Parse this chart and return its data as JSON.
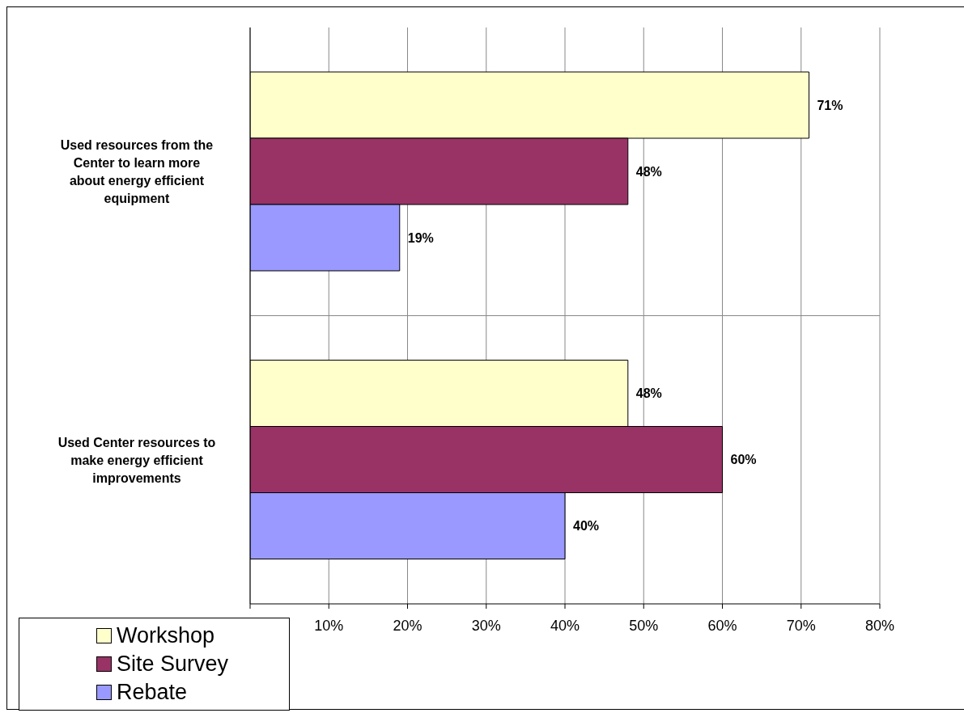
{
  "chart_data": {
    "type": "bar",
    "orientation": "horizontal",
    "categories": [
      "Used resources from the Center to learn more about energy efficient equipment",
      "Used Center resources to make energy efficient improvements"
    ],
    "series": [
      {
        "name": "Workshop",
        "color": "#ffffcc",
        "values": [
          71,
          48
        ],
        "value_labels": [
          "71%",
          "48%"
        ]
      },
      {
        "name": "Site Survey",
        "color": "#993366",
        "values": [
          48,
          60
        ],
        "value_labels": [
          "48%",
          "60%"
        ]
      },
      {
        "name": "Rebate",
        "color": "#9999ff",
        "values": [
          19,
          40
        ],
        "value_labels": [
          "19%",
          "40%"
        ]
      }
    ],
    "xlim": [
      0,
      80
    ],
    "xticks": [
      {
        "value": 0,
        "label": null
      },
      {
        "value": 10,
        "label": "10%"
      },
      {
        "value": 20,
        "label": "20%"
      },
      {
        "value": 30,
        "label": "30%"
      },
      {
        "value": 40,
        "label": "40%"
      },
      {
        "value": 50,
        "label": "50%"
      },
      {
        "value": 60,
        "label": "60%"
      },
      {
        "value": 70,
        "label": "70%"
      },
      {
        "value": 80,
        "label": "80%"
      }
    ],
    "grid": true,
    "legend": "bottom left"
  }
}
